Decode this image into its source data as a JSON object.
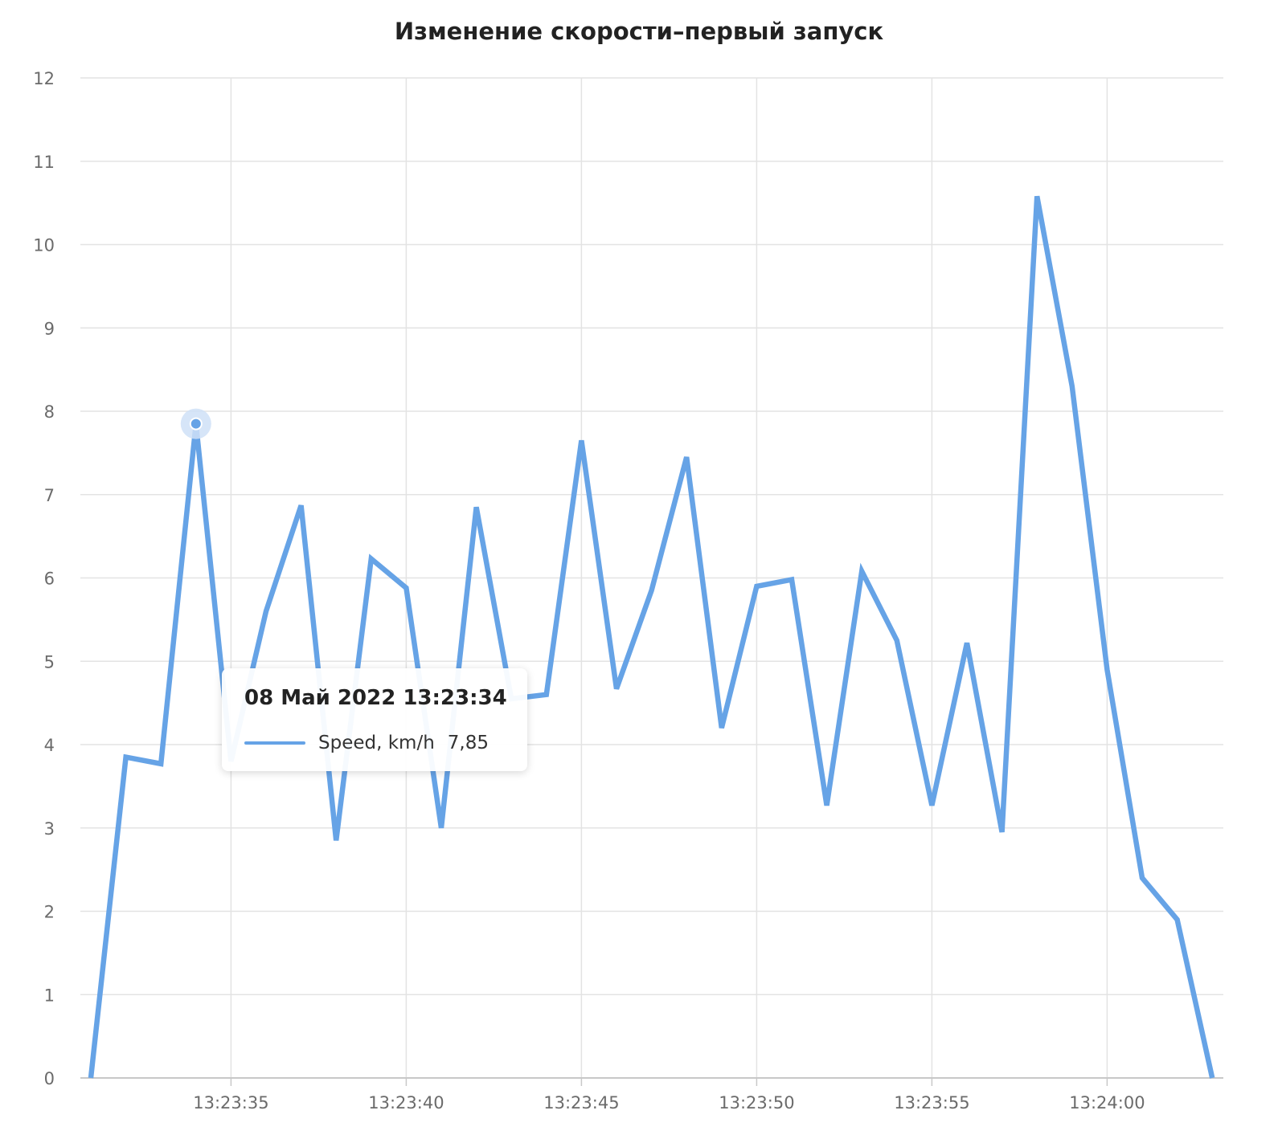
{
  "colors": {
    "line": "#66a3e6",
    "grid": "#e3e3e3",
    "axis": "#c8c8c8",
    "text": "#6b6b6b",
    "title": "#222222",
    "highlight_ring": "#cfe1f7"
  },
  "tooltip": {
    "title": "08 Май 2022 13:23:34",
    "series_label": "Speed, km/h",
    "value_text": "7,85"
  },
  "chart_data": {
    "type": "line",
    "title": "Изменение скорости–первый запуск",
    "xlabel": "",
    "ylabel": "",
    "x_ticks": [
      "13:23:35",
      "13:23:40",
      "13:23:45",
      "13:23:50",
      "13:23:55",
      "13:24:00"
    ],
    "x": [
      "13:23:31",
      "13:23:32",
      "13:23:33",
      "13:23:34",
      "13:23:35",
      "13:23:36",
      "13:23:37",
      "13:23:38",
      "13:23:39",
      "13:23:40",
      "13:23:41",
      "13:23:42",
      "13:23:43",
      "13:23:44",
      "13:23:45",
      "13:23:46",
      "13:23:47",
      "13:23:48",
      "13:23:49",
      "13:23:50",
      "13:23:51",
      "13:23:52",
      "13:23:53",
      "13:23:54",
      "13:23:55",
      "13:23:56",
      "13:23:57",
      "13:23:58",
      "13:23:59",
      "13:24:00",
      "13:24:01",
      "13:24:02",
      "13:24:03"
    ],
    "series": [
      {
        "name": "Speed, km/h",
        "values": [
          0,
          3.85,
          3.77,
          7.85,
          3.8,
          5.6,
          6.87,
          2.85,
          6.23,
          5.88,
          3.0,
          6.85,
          4.55,
          4.6,
          7.65,
          4.67,
          5.85,
          7.45,
          4.2,
          5.9,
          5.98,
          3.27,
          6.08,
          5.25,
          3.27,
          5.22,
          2.95,
          10.58,
          8.3,
          4.9,
          2.4,
          1.9,
          0
        ]
      }
    ],
    "ylim": [
      0,
      12
    ],
    "y_ticks": [
      0,
      1,
      2,
      3,
      4,
      5,
      6,
      7,
      8,
      9,
      10,
      11,
      12
    ],
    "grid": true,
    "legend": "none",
    "highlighted_point": "13:23:34"
  }
}
